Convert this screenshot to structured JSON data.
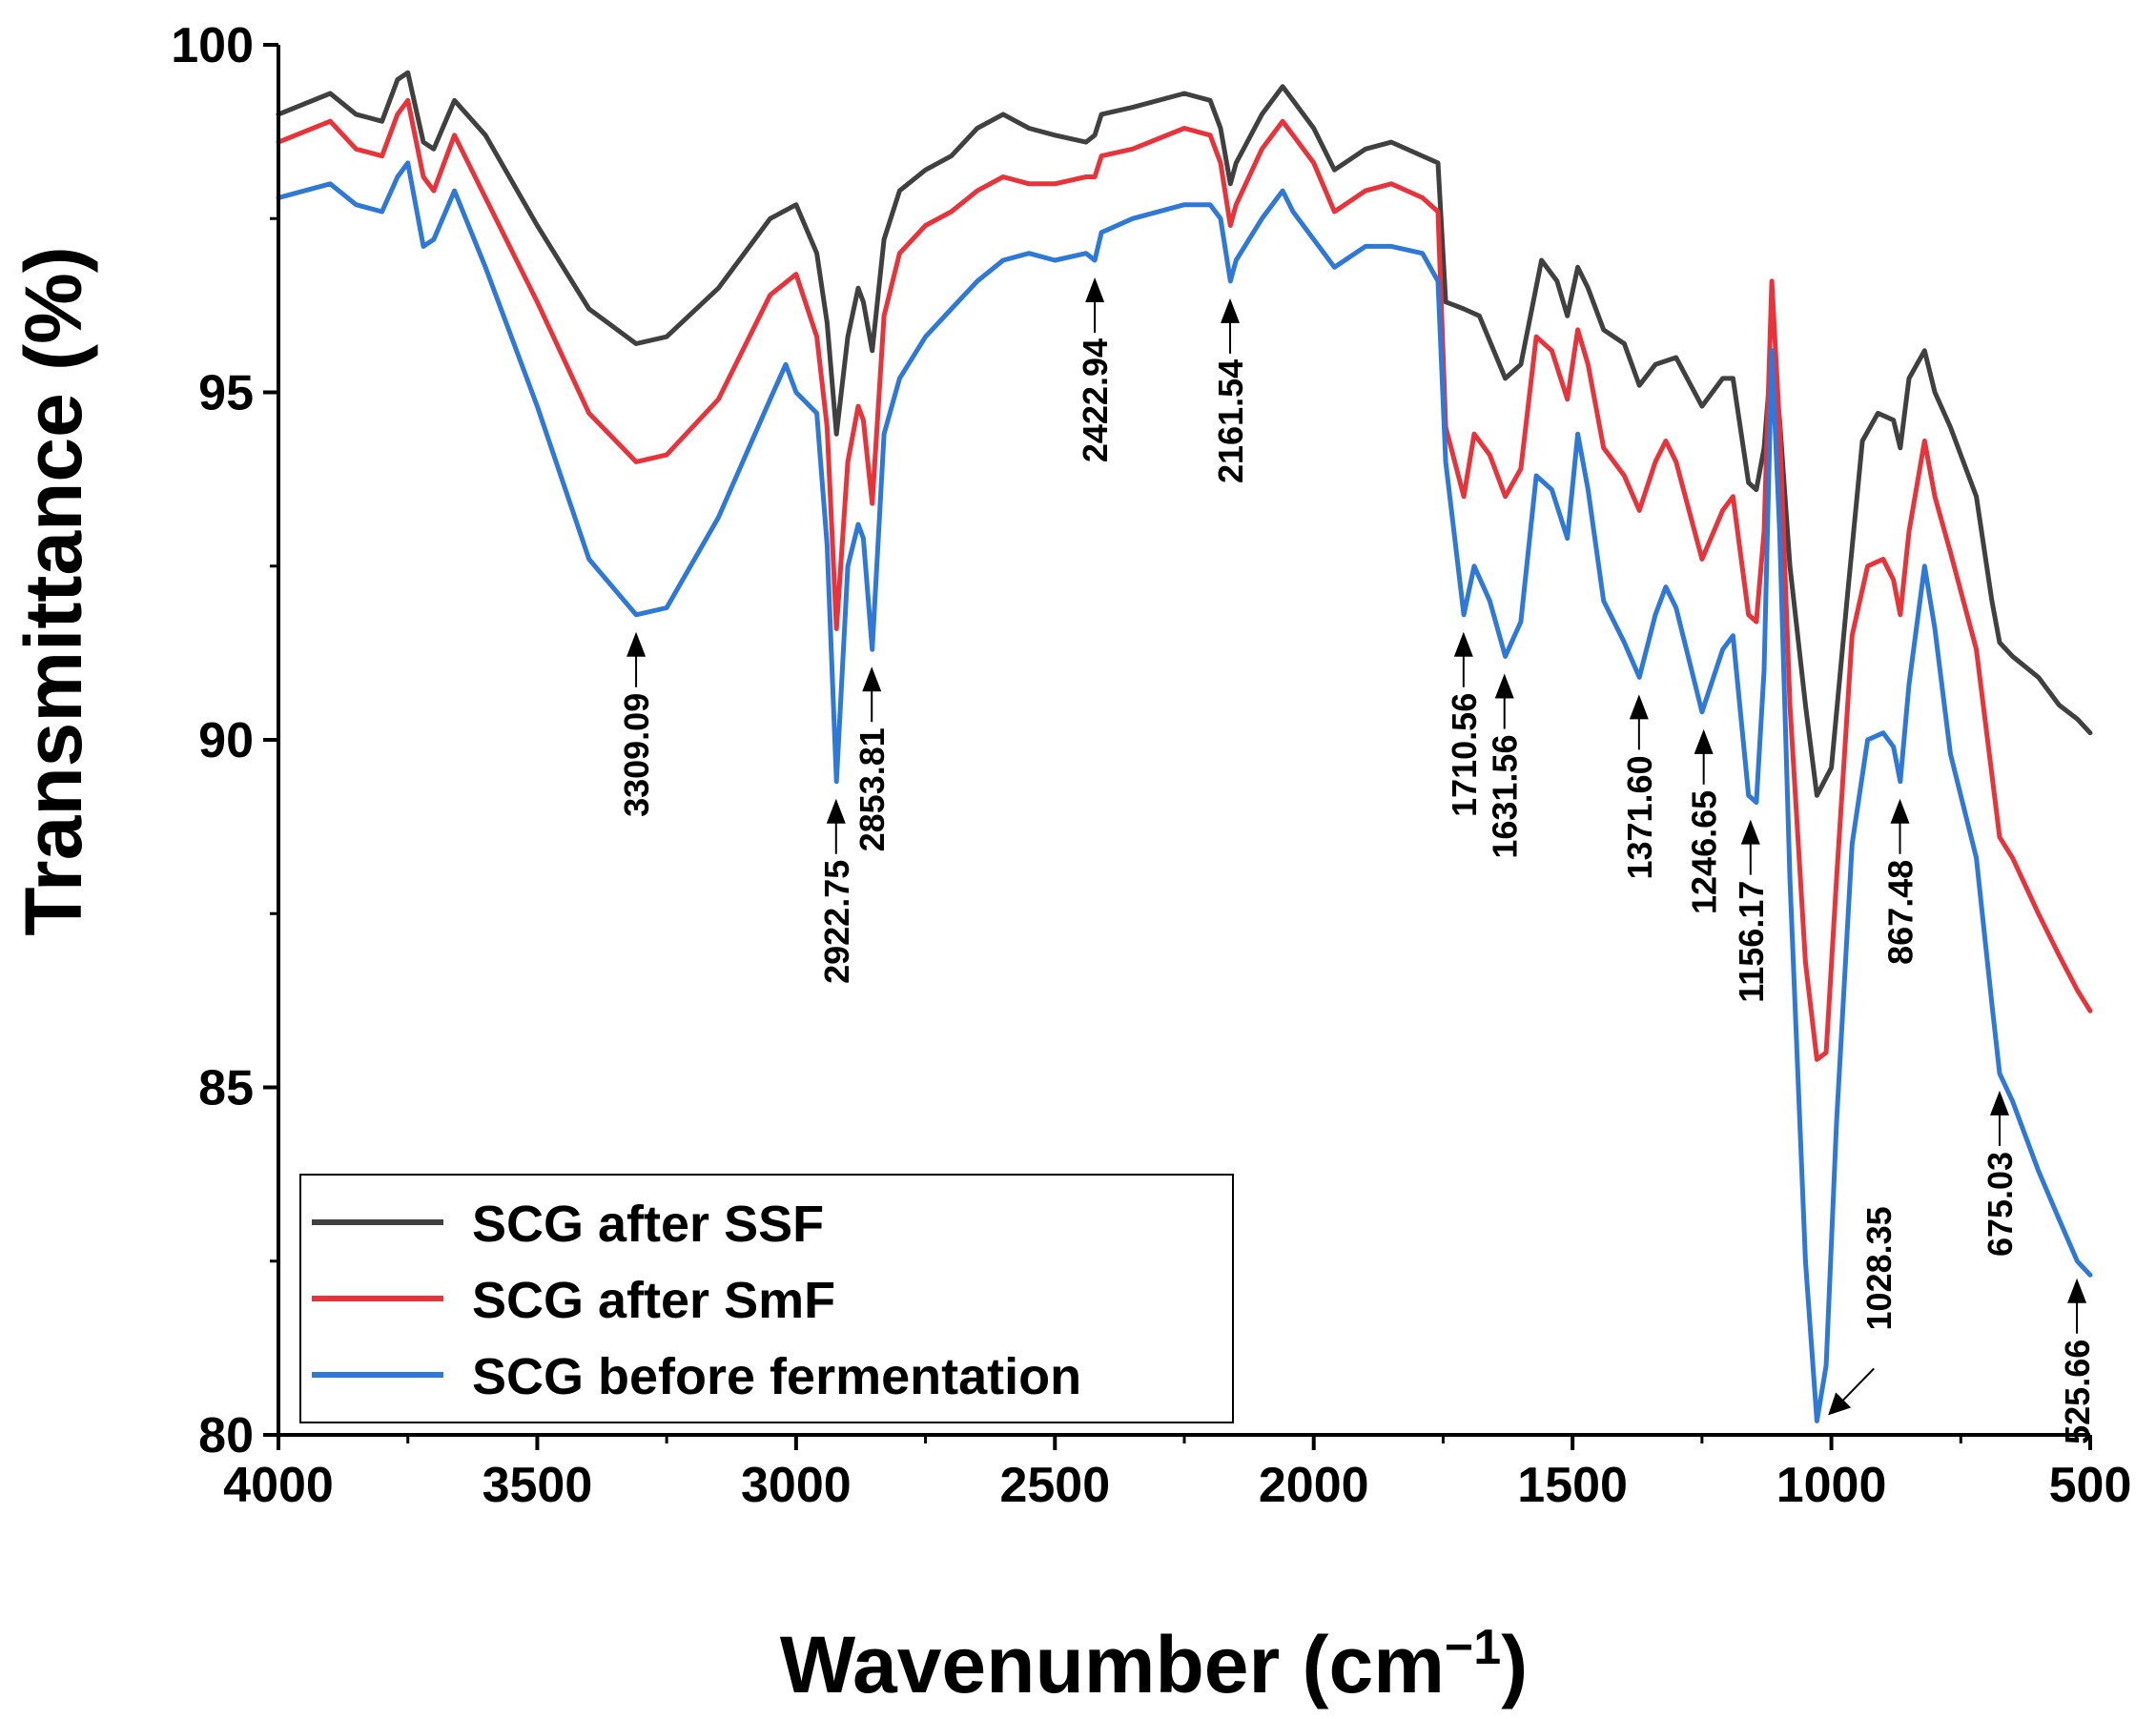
{
  "chart_data": {
    "type": "line",
    "title": "",
    "xlabel": "Wavenumber (cm",
    "xlabel_sup": "−1",
    "xlabel_close": ")",
    "ylabel": "Transmittance (%)",
    "xlim": [
      4000,
      500
    ],
    "ylim": [
      80,
      100
    ],
    "x_reversed": true,
    "x_ticks": [
      4000,
      3500,
      3000,
      2500,
      2000,
      1500,
      1000,
      500
    ],
    "y_ticks": [
      80,
      85,
      90,
      95,
      100
    ],
    "legend_position": "bottom-left",
    "series": [
      {
        "name": "SCG after SSF",
        "color": "#404040",
        "points": [
          [
            4000,
            99.0
          ],
          [
            3900,
            99.3
          ],
          [
            3850,
            99.0
          ],
          [
            3800,
            98.9
          ],
          [
            3770,
            99.5
          ],
          [
            3750,
            99.6
          ],
          [
            3720,
            98.6
          ],
          [
            3700,
            98.5
          ],
          [
            3660,
            99.2
          ],
          [
            3600,
            98.7
          ],
          [
            3500,
            97.4
          ],
          [
            3400,
            96.2
          ],
          [
            3309,
            95.7
          ],
          [
            3250,
            95.8
          ],
          [
            3150,
            96.5
          ],
          [
            3050,
            97.5
          ],
          [
            3000,
            97.7
          ],
          [
            2960,
            97.0
          ],
          [
            2940,
            96.0
          ],
          [
            2922,
            94.4
          ],
          [
            2900,
            95.8
          ],
          [
            2880,
            96.5
          ],
          [
            2870,
            96.3
          ],
          [
            2853,
            95.6
          ],
          [
            2830,
            97.2
          ],
          [
            2800,
            97.9
          ],
          [
            2750,
            98.2
          ],
          [
            2700,
            98.4
          ],
          [
            2650,
            98.8
          ],
          [
            2600,
            99.0
          ],
          [
            2550,
            98.8
          ],
          [
            2500,
            98.7
          ],
          [
            2440,
            98.6
          ],
          [
            2423,
            98.7
          ],
          [
            2410,
            99.0
          ],
          [
            2350,
            99.1
          ],
          [
            2250,
            99.3
          ],
          [
            2200,
            99.2
          ],
          [
            2180,
            98.8
          ],
          [
            2161,
            98.0
          ],
          [
            2150,
            98.3
          ],
          [
            2100,
            99.0
          ],
          [
            2060,
            99.4
          ],
          [
            2040,
            99.2
          ],
          [
            2000,
            98.8
          ],
          [
            1960,
            98.2
          ],
          [
            1940,
            98.3
          ],
          [
            1900,
            98.5
          ],
          [
            1850,
            98.6
          ],
          [
            1790,
            98.4
          ],
          [
            1760,
            98.3
          ],
          [
            1745,
            96.3
          ],
          [
            1710,
            96.2
          ],
          [
            1680,
            96.1
          ],
          [
            1630,
            95.2
          ],
          [
            1600,
            95.4
          ],
          [
            1560,
            96.9
          ],
          [
            1530,
            96.6
          ],
          [
            1510,
            96.1
          ],
          [
            1490,
            96.8
          ],
          [
            1470,
            96.5
          ],
          [
            1440,
            95.9
          ],
          [
            1400,
            95.7
          ],
          [
            1371,
            95.1
          ],
          [
            1340,
            95.4
          ],
          [
            1300,
            95.5
          ],
          [
            1250,
            94.8
          ],
          [
            1210,
            95.2
          ],
          [
            1190,
            95.2
          ],
          [
            1160,
            93.7
          ],
          [
            1145,
            93.6
          ],
          [
            1130,
            94.2
          ],
          [
            1115,
            95.6
          ],
          [
            1100,
            94.6
          ],
          [
            1080,
            92.5
          ],
          [
            1050,
            90.5
          ],
          [
            1028,
            89.2
          ],
          [
            1000,
            89.6
          ],
          [
            970,
            92.0
          ],
          [
            940,
            94.3
          ],
          [
            910,
            94.7
          ],
          [
            880,
            94.6
          ],
          [
            867,
            94.2
          ],
          [
            850,
            95.2
          ],
          [
            820,
            95.6
          ],
          [
            800,
            95.0
          ],
          [
            770,
            94.5
          ],
          [
            720,
            93.5
          ],
          [
            690,
            92.0
          ],
          [
            675,
            91.4
          ],
          [
            650,
            91.2
          ],
          [
            600,
            90.9
          ],
          [
            560,
            90.5
          ],
          [
            525,
            90.3
          ],
          [
            500,
            90.1
          ]
        ]
      },
      {
        "name": "SCG after SmF",
        "color": "#e8333a",
        "points": [
          [
            4000,
            98.6
          ],
          [
            3900,
            98.9
          ],
          [
            3850,
            98.5
          ],
          [
            3800,
            98.4
          ],
          [
            3770,
            99.0
          ],
          [
            3750,
            99.2
          ],
          [
            3720,
            98.1
          ],
          [
            3700,
            97.9
          ],
          [
            3660,
            98.7
          ],
          [
            3600,
            97.8
          ],
          [
            3500,
            96.3
          ],
          [
            3400,
            94.7
          ],
          [
            3309,
            94.0
          ],
          [
            3250,
            94.1
          ],
          [
            3150,
            94.9
          ],
          [
            3050,
            96.4
          ],
          [
            3000,
            96.7
          ],
          [
            2960,
            95.8
          ],
          [
            2940,
            94.5
          ],
          [
            2922,
            91.6
          ],
          [
            2900,
            94.0
          ],
          [
            2880,
            94.8
          ],
          [
            2870,
            94.6
          ],
          [
            2853,
            93.4
          ],
          [
            2830,
            96.1
          ],
          [
            2800,
            97.0
          ],
          [
            2750,
            97.4
          ],
          [
            2700,
            97.6
          ],
          [
            2650,
            97.9
          ],
          [
            2600,
            98.1
          ],
          [
            2550,
            98.0
          ],
          [
            2500,
            98.0
          ],
          [
            2440,
            98.1
          ],
          [
            2423,
            98.1
          ],
          [
            2410,
            98.4
          ],
          [
            2350,
            98.5
          ],
          [
            2250,
            98.8
          ],
          [
            2200,
            98.7
          ],
          [
            2180,
            98.3
          ],
          [
            2161,
            97.4
          ],
          [
            2150,
            97.7
          ],
          [
            2100,
            98.5
          ],
          [
            2060,
            98.9
          ],
          [
            2040,
            98.7
          ],
          [
            2000,
            98.3
          ],
          [
            1960,
            97.6
          ],
          [
            1940,
            97.7
          ],
          [
            1900,
            97.9
          ],
          [
            1850,
            98.0
          ],
          [
            1790,
            97.8
          ],
          [
            1760,
            97.6
          ],
          [
            1745,
            94.5
          ],
          [
            1710,
            93.5
          ],
          [
            1690,
            94.4
          ],
          [
            1660,
            94.1
          ],
          [
            1630,
            93.5
          ],
          [
            1600,
            93.9
          ],
          [
            1570,
            95.8
          ],
          [
            1540,
            95.6
          ],
          [
            1510,
            94.9
          ],
          [
            1490,
            95.9
          ],
          [
            1470,
            95.4
          ],
          [
            1440,
            94.2
          ],
          [
            1400,
            93.8
          ],
          [
            1371,
            93.3
          ],
          [
            1340,
            94.0
          ],
          [
            1320,
            94.3
          ],
          [
            1300,
            94.0
          ],
          [
            1250,
            92.6
          ],
          [
            1210,
            93.3
          ],
          [
            1190,
            93.5
          ],
          [
            1160,
            91.8
          ],
          [
            1145,
            91.7
          ],
          [
            1130,
            93.0
          ],
          [
            1115,
            96.6
          ],
          [
            1100,
            94.5
          ],
          [
            1080,
            90.5
          ],
          [
            1050,
            86.8
          ],
          [
            1028,
            85.4
          ],
          [
            1010,
            85.5
          ],
          [
            990,
            88.0
          ],
          [
            960,
            91.5
          ],
          [
            930,
            92.5
          ],
          [
            900,
            92.6
          ],
          [
            880,
            92.3
          ],
          [
            867,
            91.8
          ],
          [
            850,
            93.0
          ],
          [
            820,
            94.3
          ],
          [
            800,
            93.5
          ],
          [
            770,
            92.7
          ],
          [
            720,
            91.3
          ],
          [
            690,
            89.5
          ],
          [
            675,
            88.6
          ],
          [
            650,
            88.3
          ],
          [
            600,
            87.5
          ],
          [
            560,
            86.9
          ],
          [
            525,
            86.4
          ],
          [
            500,
            86.1
          ]
        ]
      },
      {
        "name": "SCG before fermentation",
        "color": "#2e78d8",
        "points": [
          [
            4000,
            97.8
          ],
          [
            3900,
            98.0
          ],
          [
            3850,
            97.7
          ],
          [
            3800,
            97.6
          ],
          [
            3770,
            98.1
          ],
          [
            3750,
            98.3
          ],
          [
            3720,
            97.1
          ],
          [
            3700,
            97.2
          ],
          [
            3660,
            97.9
          ],
          [
            3600,
            96.8
          ],
          [
            3500,
            94.8
          ],
          [
            3400,
            92.6
          ],
          [
            3309,
            91.8
          ],
          [
            3250,
            91.9
          ],
          [
            3150,
            93.2
          ],
          [
            3050,
            94.9
          ],
          [
            3020,
            95.4
          ],
          [
            3000,
            95.0
          ],
          [
            2960,
            94.7
          ],
          [
            2940,
            92.8
          ],
          [
            2922,
            89.4
          ],
          [
            2900,
            92.5
          ],
          [
            2880,
            93.1
          ],
          [
            2870,
            92.9
          ],
          [
            2853,
            91.3
          ],
          [
            2830,
            94.4
          ],
          [
            2800,
            95.2
          ],
          [
            2750,
            95.8
          ],
          [
            2700,
            96.2
          ],
          [
            2650,
            96.6
          ],
          [
            2600,
            96.9
          ],
          [
            2550,
            97.0
          ],
          [
            2500,
            96.9
          ],
          [
            2440,
            97.0
          ],
          [
            2423,
            96.9
          ],
          [
            2410,
            97.3
          ],
          [
            2350,
            97.5
          ],
          [
            2250,
            97.7
          ],
          [
            2200,
            97.7
          ],
          [
            2180,
            97.5
          ],
          [
            2161,
            96.6
          ],
          [
            2150,
            96.9
          ],
          [
            2100,
            97.5
          ],
          [
            2060,
            97.9
          ],
          [
            2040,
            97.6
          ],
          [
            2000,
            97.2
          ],
          [
            1960,
            96.8
          ],
          [
            1940,
            96.9
          ],
          [
            1900,
            97.1
          ],
          [
            1850,
            97.1
          ],
          [
            1790,
            97.0
          ],
          [
            1760,
            96.6
          ],
          [
            1745,
            94.0
          ],
          [
            1710,
            91.8
          ],
          [
            1690,
            92.5
          ],
          [
            1660,
            92.0
          ],
          [
            1630,
            91.2
          ],
          [
            1600,
            91.7
          ],
          [
            1570,
            93.8
          ],
          [
            1540,
            93.6
          ],
          [
            1510,
            92.9
          ],
          [
            1490,
            94.4
          ],
          [
            1470,
            93.6
          ],
          [
            1440,
            92.0
          ],
          [
            1400,
            91.4
          ],
          [
            1371,
            90.9
          ],
          [
            1340,
            91.8
          ],
          [
            1320,
            92.2
          ],
          [
            1300,
            91.9
          ],
          [
            1250,
            90.4
          ],
          [
            1210,
            91.3
          ],
          [
            1190,
            91.5
          ],
          [
            1160,
            89.2
          ],
          [
            1145,
            89.1
          ],
          [
            1130,
            91.0
          ],
          [
            1115,
            95.6
          ],
          [
            1100,
            93.0
          ],
          [
            1080,
            88.0
          ],
          [
            1050,
            82.5
          ],
          [
            1028,
            80.2
          ],
          [
            1010,
            81.0
          ],
          [
            990,
            84.5
          ],
          [
            960,
            88.5
          ],
          [
            930,
            90.0
          ],
          [
            900,
            90.1
          ],
          [
            880,
            89.9
          ],
          [
            867,
            89.4
          ],
          [
            850,
            90.8
          ],
          [
            820,
            92.5
          ],
          [
            800,
            91.6
          ],
          [
            770,
            89.8
          ],
          [
            720,
            88.3
          ],
          [
            690,
            86.2
          ],
          [
            675,
            85.2
          ],
          [
            650,
            84.8
          ],
          [
            600,
            83.8
          ],
          [
            560,
            83.1
          ],
          [
            525,
            82.5
          ],
          [
            500,
            82.3
          ]
        ]
      }
    ],
    "annotations": [
      {
        "label": "3309.09",
        "x": 3309.09,
        "y": 91.8,
        "side": "below"
      },
      {
        "label": "2922.75",
        "x": 2922.75,
        "y": 89.4,
        "side": "below"
      },
      {
        "label": "2853.81",
        "x": 2853.81,
        "y": 91.3,
        "side": "below"
      },
      {
        "label": "2422.94",
        "x": 2422.94,
        "y": 96.9,
        "side": "below"
      },
      {
        "label": "2161.54",
        "x": 2161.54,
        "y": 96.6,
        "side": "below"
      },
      {
        "label": "1710.56",
        "x": 1710.56,
        "y": 91.8,
        "side": "below"
      },
      {
        "label": "1631.56",
        "x": 1631.56,
        "y": 91.2,
        "side": "below"
      },
      {
        "label": "1371.60",
        "x": 1371.6,
        "y": 90.9,
        "side": "below"
      },
      {
        "label": "1246.65",
        "x": 1246.65,
        "y": 90.4,
        "side": "below"
      },
      {
        "label": "1156.17",
        "x": 1156.17,
        "y": 89.1,
        "side": "below"
      },
      {
        "label": "1028.35",
        "x": 1028.35,
        "y": 80.2,
        "side": "right"
      },
      {
        "label": "867.48",
        "x": 867.48,
        "y": 89.4,
        "side": "below"
      },
      {
        "label": "675.03",
        "x": 675.03,
        "y": 85.2,
        "side": "below"
      },
      {
        "label": "525.66",
        "x": 525.66,
        "y": 82.5,
        "side": "below"
      }
    ]
  }
}
